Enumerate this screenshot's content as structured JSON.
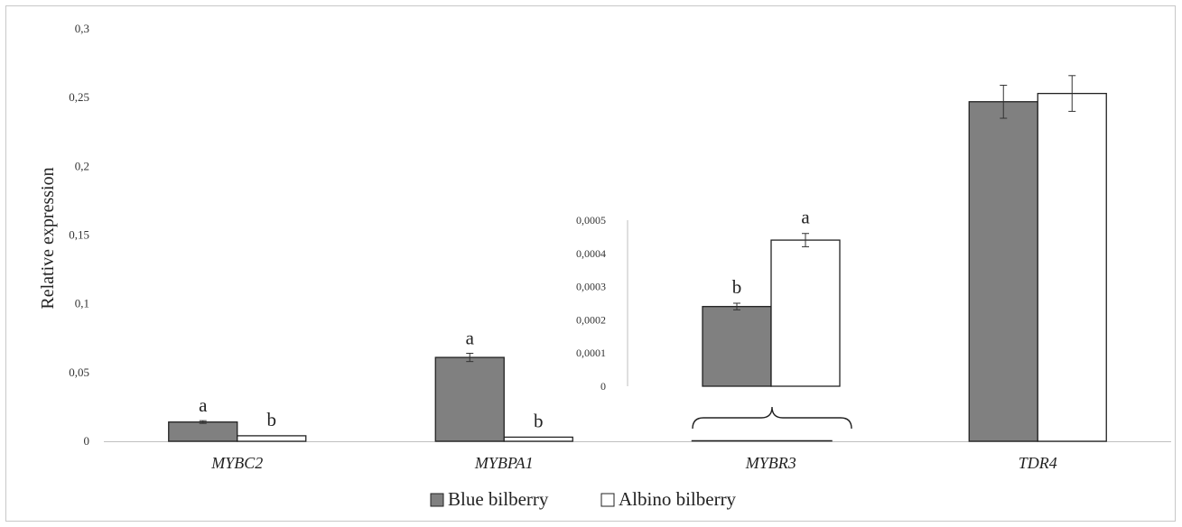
{
  "chart_data": {
    "type": "bar",
    "ylabel": "Relative expression",
    "ylim": [
      0,
      0.3
    ],
    "y_ticks": [
      "0",
      "0,05",
      "0,1",
      "0,15",
      "0,2",
      "0,25",
      "0,3"
    ],
    "categories": [
      "MYBC2",
      "MYBPA1",
      "MYBR3",
      "TDR4"
    ],
    "series": [
      {
        "name": "Blue bilberry",
        "color": "#808080",
        "values": [
          0.014,
          0.061,
          0.00024,
          0.247
        ],
        "errors": [
          0.001,
          0.003,
          1e-05,
          0.012
        ]
      },
      {
        "name": "Albino bilberry",
        "color": "#ffffff",
        "values": [
          0.004,
          0.003,
          0.00044,
          0.253
        ],
        "errors": [
          0.0005,
          0.0005,
          2e-05,
          0.013
        ]
      }
    ],
    "significance": [
      {
        "category": "MYBC2",
        "labels": [
          "a",
          "b"
        ]
      },
      {
        "category": "MYBPA1",
        "labels": [
          "a",
          "b"
        ]
      },
      {
        "category": "MYBR3",
        "labels": [
          "b",
          "a"
        ]
      }
    ],
    "inset": {
      "category": "MYBR3",
      "ylim": [
        0,
        0.0005
      ],
      "y_ticks": [
        "0",
        "0,0001",
        "0,0002",
        "0,0003",
        "0,0004",
        "0,0005"
      ],
      "blue_value": 0.00024,
      "blue_error": 1e-05,
      "albino_value": 0.00044,
      "albino_error": 2e-05,
      "labels": [
        "b",
        "a"
      ]
    },
    "legend": {
      "placement": "bottom",
      "entries": [
        "Blue bilberry",
        "Albino bilberry"
      ]
    },
    "grid": false
  }
}
